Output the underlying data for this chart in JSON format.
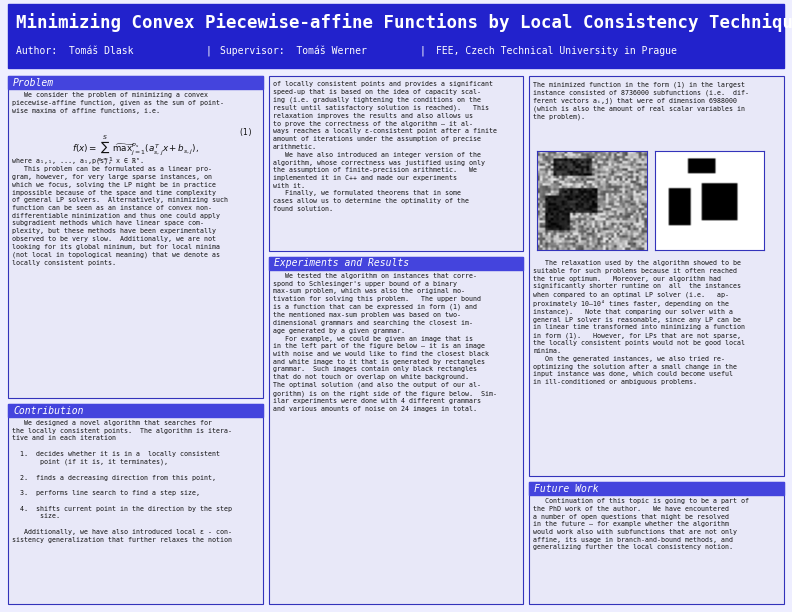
{
  "title": "Minimizing Convex Piecewise-affine Functions by Local Consistency Techniques",
  "subtitle_author": "Author:  Tomáš Dlask",
  "subtitle_sep1": "|",
  "subtitle_supervisor": "Supervisor:  Tomáš Werner",
  "subtitle_sep2": "|",
  "subtitle_affil": "FEE, Czech Technical University in Prague",
  "bg_color": "#eeeeff",
  "header_bg": "#2222cc",
  "header_text_color": "#ffffff",
  "section_header_bg": "#4444dd",
  "section_header_text_color": "#ffffff",
  "panel_bg": "#e8e8f8",
  "panel_border": "#3333bb",
  "body_text_color": "#111111",
  "title_fontsize": 12.5,
  "subtitle_fontsize": 7.0,
  "section_fontsize": 7.0,
  "body_fontsize": 4.8,
  "col1_problem_header": "Problem",
  "col1_problem_text1": "   We consider the problem of minimizing a convex\npiecewise-affine function, given as the sum of point-\nwise maxima of affine functions, i.e.",
  "col1_problem_text2": "where a₁,₁, ..., a₁,p(s), x ∈ ℝⁿ.\n   This problem can be formulated as a linear pro-\ngram, however, for very large sparse instances, on\nwhich we focus, solving the LP might be in practice\nimpossible because of the space and time complexity\nof general LP solvers.  Alternatively, minimizing such\nfunction can be seen as an instance of convex non-\ndifferentiable minimization and thus one could apply\nsubgradient methods which have linear space com-\nplexity, but these methods have been experimentally\nobserved to be very slow.  Additionally, we are not\nlooking for its global minimum, but for local minima\n(not local in topological meaning) that we denote as\nlocally consistent points.",
  "col1_contrib_header": "Contribution",
  "col1_contrib_text": "   We designed a novel algorithm that searches for\nthe locally consistent points.  The algorithm is itera-\ntive and in each iteration\n\n  1.  decides whether it is in a  locally consistent\n       point (if it is, it terminates),\n\n  2.  finds a decreasing direction from this point,\n\n  3.  performs line search to find a step size,\n\n  4.  shifts current point in the direction by the step\n       size.\n\n   Additionally, we have also introduced local ε - con-\nsistency generalization that further relaxes the notion",
  "col2_top_text": "of locally consistent points and provides a significant\nspeed-up that is based on the idea of capacity scal-\ning (i.e. gradually tightening the conditions on the\nresult until satisfactory solution is reached).   This\nrelaxation improves the results and also allows us\nto prove the correctness of the algorithm – it al-\nways reaches a locally ε-consistent point after a finite\namount of iterations under the assumption of precise\narithmetic.\n   We have also introduced an integer version of the\nalgorithm, whose correctness was justified using only\nthe assumption of finite-precision arithmetic.   We\nimplemented it in C++ and made our experiments\nwith it.\n   Finally, we formulated theorems that in some\ncases allow us to determine the optimality of the\nfound solution.",
  "col2_experiments_header": "Experiments and Results",
  "col2_experiments_text": "   We tested the algorithm on instances that corre-\nspond to Schlesinger's upper bound of a binary\nmax-sum problem, which was also the original mo-\ntivation for solving this problem.   The upper bound\nis a function that can be expressed in form (1) and\nthe mentioned max-sum problem was based on two-\ndimensional grammars and searching the closest im-\nage generated by a given grammar.\n   For example, we could be given an image that is\nin the left part of the figure below – it is an image\nwith noise and we would like to find the closest black\nand white image to it that is generated by rectangles\ngrammar.  Such images contain only black rectangles\nthat do not touch or overlap on white background.\nThe optimal solution (and also the output of our al-\ngorithm) is on the right side of the figure below.  Sim-\nilar experiments were done with 4 different grammars\nand various amounts of noise on 24 images in total.",
  "col3_panel_text1": "The minimized function in the form (1) in the largest\ninstance consisted of 8736000 subfunctions (i.e.  dif-\nferent vectors aᵢ,j) that were of dimension 6988000\n(which is also the amount of real scalar variables in\nthe problem).",
  "col3_panel_text2": "   The relaxation used by the algorithm showed to be\nsuitable for such problems because it often reached\nthe true optimum.   Moreover, our algorithm had\nsignificantly shorter runtime on  all  the instances\nwhen compared to an optimal LP solver (i.e.   ap-\nproximately 10–10⁴ times faster, depending on the\ninstance).   Note that comparing our solver with a\ngeneral LP solver is reasonable, since any LP can be\nin linear time transformed into minimizing a function\nin form (1).   However, for LPs that are not sparse,\nthe locally consistent points would not be good local\nminima.\n   On the generated instances, we also tried re-\noptimizing the solution after a small change in the\ninput instance was done, which could become useful\nin ill-conditioned or ambiguous problems.",
  "col3_future_header": "Future Work",
  "col3_future_text": "   Continuation of this topic is going to be a part of\nthe PhD work of the author.   We have encountered\na number of open questions that might be resolved\nin the future – for example whether the algorithm\nwould work also with subfunctions that are not only\naffine, its usage in branch-and-bound methods, and\ngeneralizing further the local consistency notion."
}
